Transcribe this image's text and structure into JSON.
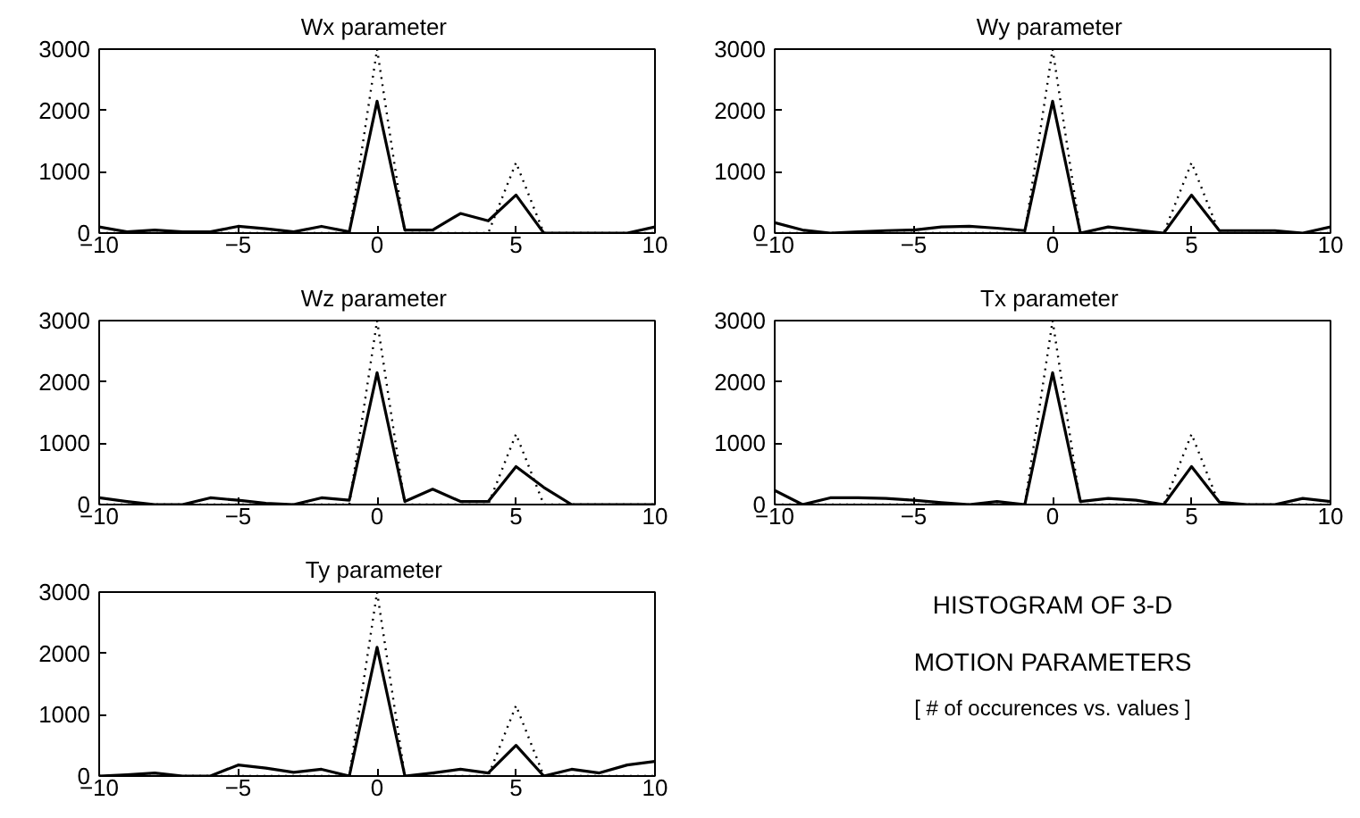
{
  "chart_data": [
    {
      "type": "line",
      "title": "Wx  parameter",
      "x": [
        -10,
        -9,
        -8,
        -7,
        -6,
        -5,
        -4,
        -3,
        -2,
        -1,
        0,
        1,
        2,
        3,
        4,
        5,
        6,
        7,
        8,
        9,
        10
      ],
      "xlim": [
        -10,
        10
      ],
      "ylim": [
        0,
        3000
      ],
      "xticks": [
        -10,
        -5,
        0,
        5,
        10
      ],
      "yticks": [
        0,
        1000,
        2000,
        3000
      ],
      "grid": false,
      "series": [
        {
          "color": "#000000",
          "line_style": "dotted",
          "values": [
            0,
            0,
            0,
            0,
            0,
            0,
            0,
            0,
            0,
            0,
            3000,
            0,
            0,
            0,
            0,
            1150,
            0,
            0,
            0,
            0,
            0
          ]
        },
        {
          "color": "#000000",
          "line_style": "solid",
          "values": [
            100,
            20,
            50,
            20,
            20,
            110,
            70,
            20,
            110,
            20,
            2150,
            50,
            50,
            320,
            200,
            620,
            0,
            0,
            0,
            0,
            100
          ]
        }
      ]
    },
    {
      "type": "line",
      "title": "Wy  parameter",
      "x": [
        -10,
        -9,
        -8,
        -7,
        -6,
        -5,
        -4,
        -3,
        -2,
        -1,
        0,
        1,
        2,
        3,
        4,
        5,
        6,
        7,
        8,
        9,
        10
      ],
      "xlim": [
        -10,
        10
      ],
      "ylim": [
        0,
        3000
      ],
      "xticks": [
        -10,
        -5,
        0,
        5,
        10
      ],
      "yticks": [
        0,
        1000,
        2000,
        3000
      ],
      "grid": false,
      "series": [
        {
          "color": "#000000",
          "line_style": "dotted",
          "values": [
            0,
            0,
            0,
            0,
            0,
            0,
            0,
            0,
            0,
            0,
            3000,
            0,
            0,
            0,
            0,
            1150,
            0,
            0,
            0,
            0,
            0
          ]
        },
        {
          "color": "#000000",
          "line_style": "solid",
          "values": [
            170,
            50,
            0,
            20,
            40,
            50,
            100,
            110,
            80,
            40,
            2150,
            0,
            100,
            50,
            0,
            620,
            40,
            40,
            40,
            0,
            100
          ]
        }
      ]
    },
    {
      "type": "line",
      "title": "Wz  parameter",
      "x": [
        -10,
        -9,
        -8,
        -7,
        -6,
        -5,
        -4,
        -3,
        -2,
        -1,
        0,
        1,
        2,
        3,
        4,
        5,
        6,
        7,
        8,
        9,
        10
      ],
      "xlim": [
        -10,
        10
      ],
      "ylim": [
        0,
        3000
      ],
      "xticks": [
        -10,
        -5,
        0,
        5,
        10
      ],
      "yticks": [
        0,
        1000,
        2000,
        3000
      ],
      "grid": false,
      "series": [
        {
          "color": "#000000",
          "line_style": "dotted",
          "values": [
            0,
            0,
            0,
            0,
            0,
            0,
            0,
            0,
            0,
            0,
            3000,
            0,
            0,
            0,
            0,
            1150,
            0,
            0,
            0,
            0,
            0
          ]
        },
        {
          "color": "#000000",
          "line_style": "solid",
          "values": [
            110,
            50,
            0,
            0,
            110,
            70,
            20,
            0,
            110,
            70,
            2150,
            50,
            250,
            50,
            50,
            620,
            280,
            0,
            0,
            0,
            0
          ]
        }
      ]
    },
    {
      "type": "line",
      "title": "Tx  parameter",
      "x": [
        -10,
        -9,
        -8,
        -7,
        -6,
        -5,
        -4,
        -3,
        -2,
        -1,
        0,
        1,
        2,
        3,
        4,
        5,
        6,
        7,
        8,
        9,
        10
      ],
      "xlim": [
        -10,
        10
      ],
      "ylim": [
        0,
        3000
      ],
      "xticks": [
        -10,
        -5,
        0,
        5,
        10
      ],
      "yticks": [
        0,
        1000,
        2000,
        3000
      ],
      "grid": false,
      "series": [
        {
          "color": "#000000",
          "line_style": "dotted",
          "values": [
            0,
            0,
            0,
            0,
            0,
            0,
            0,
            0,
            0,
            0,
            3000,
            0,
            0,
            0,
            0,
            1150,
            0,
            0,
            0,
            0,
            0
          ]
        },
        {
          "color": "#000000",
          "line_style": "solid",
          "values": [
            230,
            0,
            110,
            110,
            100,
            70,
            30,
            0,
            50,
            0,
            2150,
            50,
            100,
            70,
            0,
            620,
            40,
            0,
            0,
            100,
            50
          ]
        }
      ]
    },
    {
      "type": "line",
      "title": "Ty  parameter",
      "x": [
        -10,
        -9,
        -8,
        -7,
        -6,
        -5,
        -4,
        -3,
        -2,
        -1,
        0,
        1,
        2,
        3,
        4,
        5,
        6,
        7,
        8,
        9,
        10
      ],
      "xlim": [
        -10,
        10
      ],
      "ylim": [
        0,
        3000
      ],
      "xticks": [
        -10,
        -5,
        0,
        5,
        10
      ],
      "yticks": [
        0,
        1000,
        2000,
        3000
      ],
      "grid": false,
      "series": [
        {
          "color": "#000000",
          "line_style": "dotted",
          "values": [
            0,
            0,
            0,
            0,
            0,
            0,
            0,
            0,
            0,
            0,
            3000,
            0,
            0,
            0,
            0,
            1150,
            0,
            0,
            0,
            0,
            0
          ]
        },
        {
          "color": "#000000",
          "line_style": "solid",
          "values": [
            0,
            20,
            50,
            0,
            0,
            180,
            130,
            60,
            110,
            0,
            2100,
            0,
            50,
            110,
            50,
            500,
            0,
            110,
            50,
            180,
            240
          ]
        }
      ]
    },
    {
      "type": "other",
      "title": "HISTOGRAM OF 3-D",
      "annotations": [
        "MOTION PARAMETERS",
        "[ # of occurences vs. values ]"
      ]
    }
  ]
}
